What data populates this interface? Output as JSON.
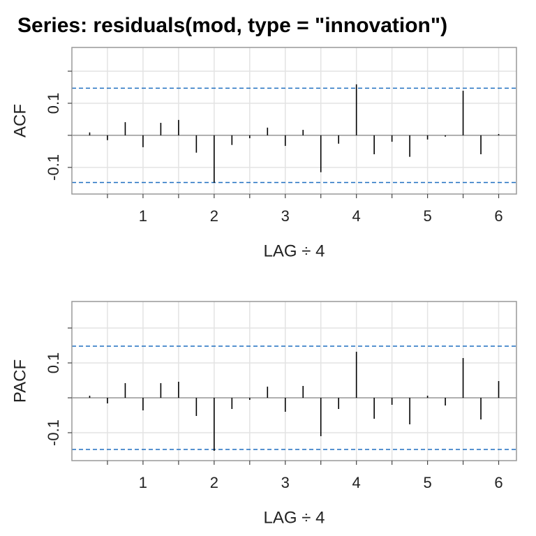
{
  "chart_data": [
    {
      "type": "stem",
      "title": "Series:  residuals(mod, type = \"innovation\")",
      "ylabel": "ACF",
      "xlabel": "LAG ÷ 4",
      "x": [
        0.25,
        0.5,
        0.75,
        1,
        1.25,
        1.5,
        1.75,
        2,
        2.25,
        2.5,
        2.75,
        3,
        3.25,
        3.5,
        3.75,
        4,
        4.25,
        4.5,
        4.75,
        5,
        5.25,
        5.5,
        5.75,
        6
      ],
      "values": [
        0.009,
        -0.015,
        0.041,
        -0.037,
        0.039,
        0.048,
        -0.054,
        -0.148,
        -0.03,
        -0.009,
        0.024,
        -0.033,
        0.017,
        -0.115,
        -0.026,
        0.159,
        -0.059,
        -0.02,
        -0.067,
        -0.013,
        -0.004,
        0.139,
        -0.059,
        0.004
      ],
      "color": "#000000",
      "confidence_limits": [
        0.147,
        -0.147
      ],
      "limit_color": "#1f6fc0",
      "xlim": [
        0,
        6.25
      ],
      "xticks": [
        1,
        2,
        3,
        4,
        5,
        6
      ],
      "xminor": [
        0.5,
        1.5,
        2.5,
        3.5,
        4.5,
        5.5
      ],
      "ylim": [
        -0.183,
        0.274
      ],
      "yticks": [
        -0.1,
        0.1
      ],
      "yminor": [
        0,
        0.2
      ],
      "grid": true
    },
    {
      "type": "stem",
      "ylabel": "PACF",
      "xlabel": "LAG ÷ 4",
      "x": [
        0.25,
        0.5,
        0.75,
        1,
        1.25,
        1.5,
        1.75,
        2,
        2.25,
        2.5,
        2.75,
        3,
        3.25,
        3.5,
        3.75,
        4,
        4.25,
        4.5,
        4.75,
        5,
        5.25,
        5.5,
        5.75,
        6
      ],
      "values": [
        0.006,
        -0.016,
        0.042,
        -0.036,
        0.042,
        0.046,
        -0.052,
        -0.152,
        -0.032,
        -0.006,
        0.032,
        -0.04,
        0.034,
        -0.11,
        -0.032,
        0.132,
        -0.06,
        -0.02,
        -0.076,
        0.006,
        -0.022,
        0.114,
        -0.062,
        0.048
      ],
      "color": "#000000",
      "confidence_limits": [
        0.148,
        -0.148
      ],
      "limit_color": "#1f6fc0",
      "xlim": [
        0,
        6.25
      ],
      "xticks": [
        1,
        2,
        3,
        4,
        5,
        6
      ],
      "xminor": [
        0.5,
        1.5,
        2.5,
        3.5,
        4.5,
        5.5
      ],
      "ylim": [
        -0.18,
        0.276
      ],
      "yticks": [
        -0.1,
        0.1
      ],
      "yminor": [
        0,
        0.2
      ],
      "grid": true
    }
  ]
}
